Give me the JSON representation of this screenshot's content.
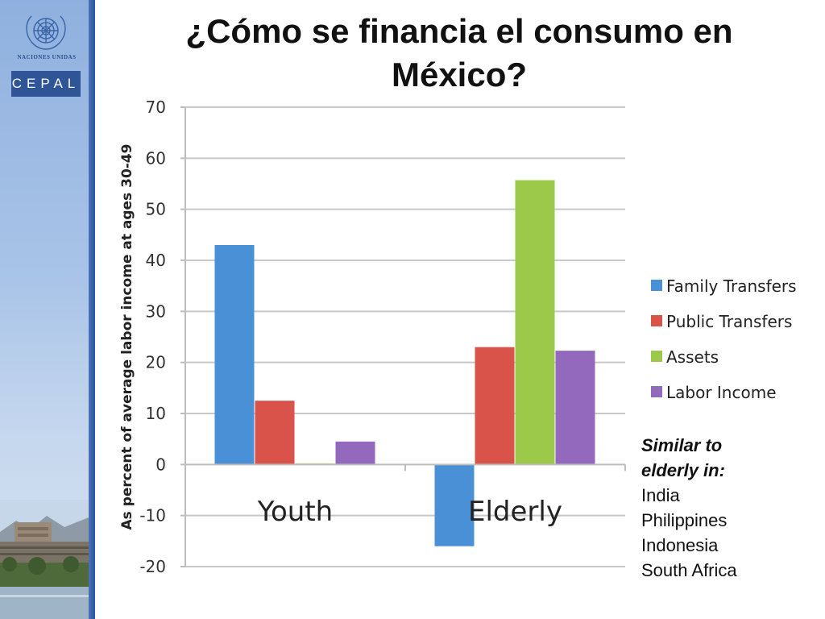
{
  "sidebar": {
    "org_name": "NACIONES UNIDAS",
    "logo_text": "CEPAL"
  },
  "slide": {
    "title": "¿Cómo se financia el consumo en México?"
  },
  "chart_data": {
    "type": "bar",
    "title": "",
    "ylabel": "As percent of average labor income at ages 30-49",
    "xlabel": "",
    "categories": [
      "Youth",
      "Elderly"
    ],
    "series": [
      {
        "name": "Family Transfers",
        "values": [
          43,
          -16
        ],
        "color": "#4a90d6"
      },
      {
        "name": "Public Transfers",
        "values": [
          12.5,
          23
        ],
        "color": "#d9534a"
      },
      {
        "name": "Assets",
        "values": [
          0.2,
          55.7
        ],
        "color": "#9cc94a"
      },
      {
        "name": "Labor Income",
        "values": [
          4.5,
          22.3
        ],
        "color": "#9369bd"
      }
    ],
    "ylim": [
      -20,
      70
    ],
    "yticks": [
      -20,
      -10,
      0,
      10,
      20,
      30,
      40,
      50,
      60,
      70
    ],
    "grid": true,
    "legend": "right"
  },
  "note": {
    "heading_lines": [
      "Similar to",
      "elderly in:"
    ],
    "items": [
      "India",
      "Philippines",
      "Indonesia",
      "South Africa"
    ]
  }
}
